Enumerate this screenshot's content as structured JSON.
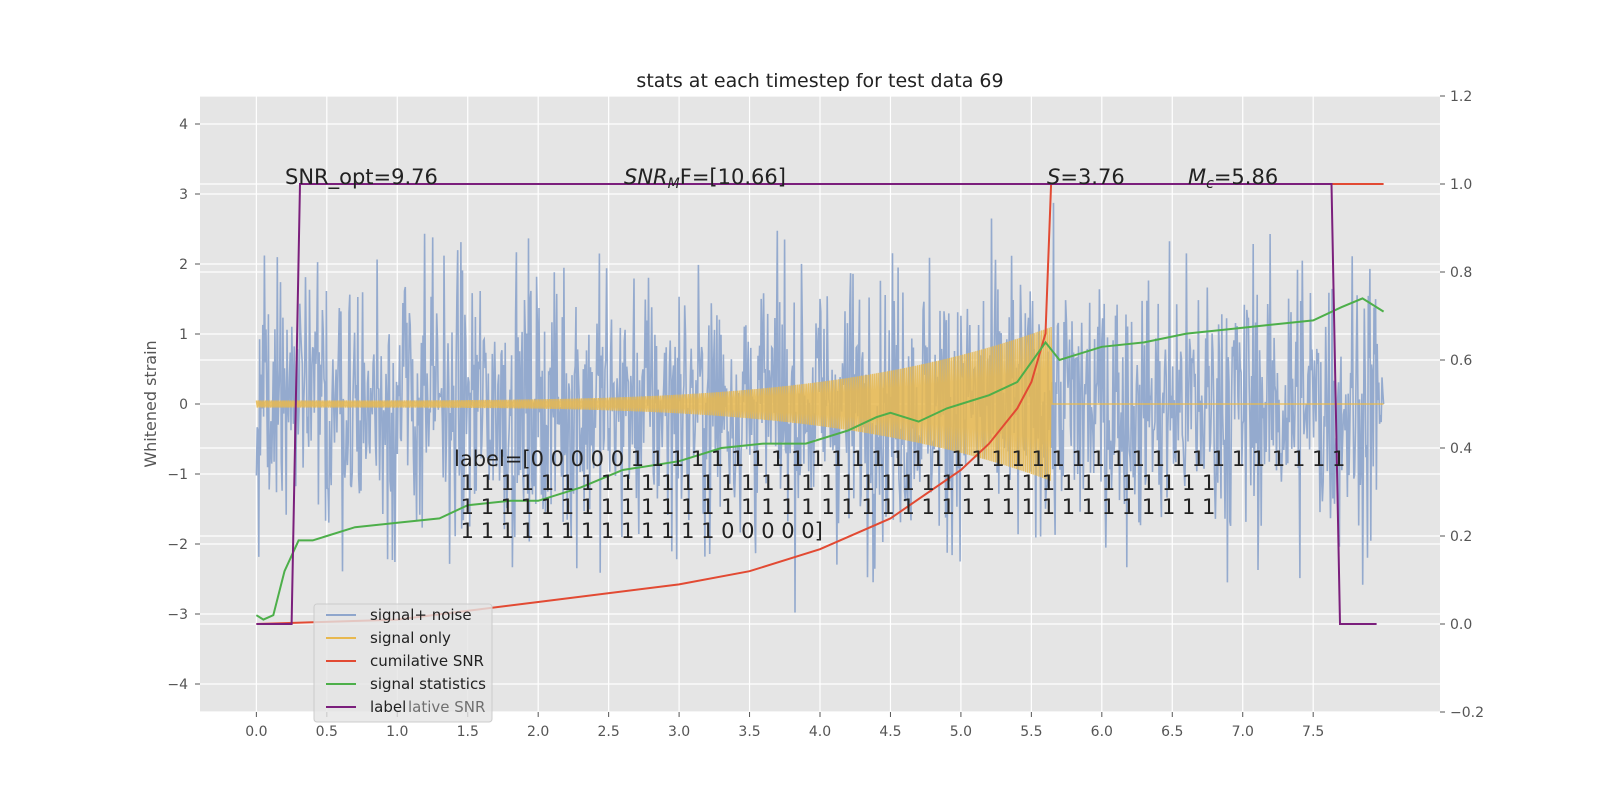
{
  "chart_data": {
    "type": "line",
    "title": "stats at each timestep for test data 69",
    "ylabel": "Whitened strain",
    "xlim": [
      -0.4,
      8.4
    ],
    "ylim": [
      -4.4,
      4.4
    ],
    "y2lim": [
      -0.2,
      1.2
    ],
    "x_ticks": [
      "0.0",
      "0.5",
      "1.0",
      "1.5",
      "2.0",
      "2.5",
      "3.0",
      "3.5",
      "4.0",
      "4.5",
      "5.0",
      "5.5",
      "6.0",
      "6.5",
      "7.0",
      "7.5"
    ],
    "y_ticks": [
      "−4",
      "−3",
      "−2",
      "−1",
      "0",
      "1",
      "2",
      "3",
      "4"
    ],
    "y2_ticks": [
      "−0.2",
      "0.0",
      "0.2",
      "0.4",
      "0.6",
      "0.8",
      "1.0",
      "1.2"
    ],
    "grid": true,
    "legend_position": "lower-left",
    "annotations": {
      "snr_opt": "SNR_opt=9.76",
      "snr_mf_italic": "SNR",
      "snr_mf_sub": "M",
      "snr_mf_rest": "F=[10.66]",
      "s_italic": "S",
      "s_rest": "=3.76",
      "mc_italic": "M",
      "mc_sub": "c",
      "mc_rest": "=5.86",
      "label_lines": [
        "label=[0 0 0 0 0 1 1 1 1 1 1 1 1 1 1 1 1 1 1 1 1 1 1 1 1 1 1 1 1 1 1 1 1 1 1 1 1 1 1 1 1",
        " 1 1 1 1 1 1 1 1 1 1 1 1 1 1 1 1 1 1 1 1 1 1 1 1 1 1 1 1 1 1 1 1 1 1 1 1 1 1",
        " 1 1 1 1 1 1 1 1 1 1 1 1 1 1 1 1 1 1 1 1 1 1 1 1 1 1 1 1 1 1 1 1 1 1 1 1 1 1",
        " 1 1 1 1 1 1 1 1 1 1 1 1 1 0 0 0 0 0]"
      ],
      "overlap_text": "lative SNR"
    },
    "series": [
      {
        "name": "signal+ noise",
        "color": "#8fa6cc",
        "axis": "left",
        "t_start": 0.0,
        "t_end": 8.0,
        "noise_sigma": 1.0
      },
      {
        "name": "signal only",
        "color": "#e8b84f",
        "axis": "left",
        "t_start": 0.0,
        "t_merger": 5.64,
        "amp_start": 0.05,
        "amp_peak": 1.1
      },
      {
        "name": "cumilative SNR",
        "color": "#e24a33",
        "axis": "right",
        "x": [
          0.0,
          1.0,
          2.0,
          3.0,
          3.5,
          4.0,
          4.5,
          5.0,
          5.2,
          5.4,
          5.5,
          5.6,
          5.64,
          8.0
        ],
        "values": [
          0.0,
          0.01,
          0.05,
          0.09,
          0.12,
          0.17,
          0.24,
          0.35,
          0.41,
          0.49,
          0.55,
          0.66,
          1.0,
          1.0
        ]
      },
      {
        "name": "signal statistics",
        "color": "#4daf4a",
        "axis": "right",
        "x": [
          0.0,
          0.05,
          0.12,
          0.2,
          0.3,
          0.4,
          0.5,
          0.7,
          1.0,
          1.3,
          1.5,
          1.8,
          2.0,
          2.3,
          2.6,
          3.0,
          3.3,
          3.6,
          3.9,
          4.2,
          4.4,
          4.5,
          4.7,
          4.9,
          5.0,
          5.2,
          5.4,
          5.6,
          5.7,
          6.0,
          6.3,
          6.6,
          6.9,
          7.2,
          7.5,
          7.7,
          7.85,
          8.0
        ],
        "values": [
          0.02,
          0.01,
          0.02,
          0.12,
          0.19,
          0.19,
          0.2,
          0.22,
          0.23,
          0.24,
          0.27,
          0.28,
          0.28,
          0.31,
          0.35,
          0.37,
          0.4,
          0.41,
          0.41,
          0.44,
          0.47,
          0.48,
          0.46,
          0.49,
          0.5,
          0.52,
          0.55,
          0.64,
          0.6,
          0.63,
          0.64,
          0.66,
          0.67,
          0.68,
          0.69,
          0.72,
          0.74,
          0.71
        ]
      },
      {
        "name": "label",
        "color": "#7b1f7c",
        "axis": "right",
        "x": [
          0.0,
          0.25,
          0.31,
          7.63,
          7.69,
          7.95
        ],
        "values": [
          0.0,
          0.0,
          1.0,
          1.0,
          0.0,
          0.0
        ]
      }
    ]
  }
}
